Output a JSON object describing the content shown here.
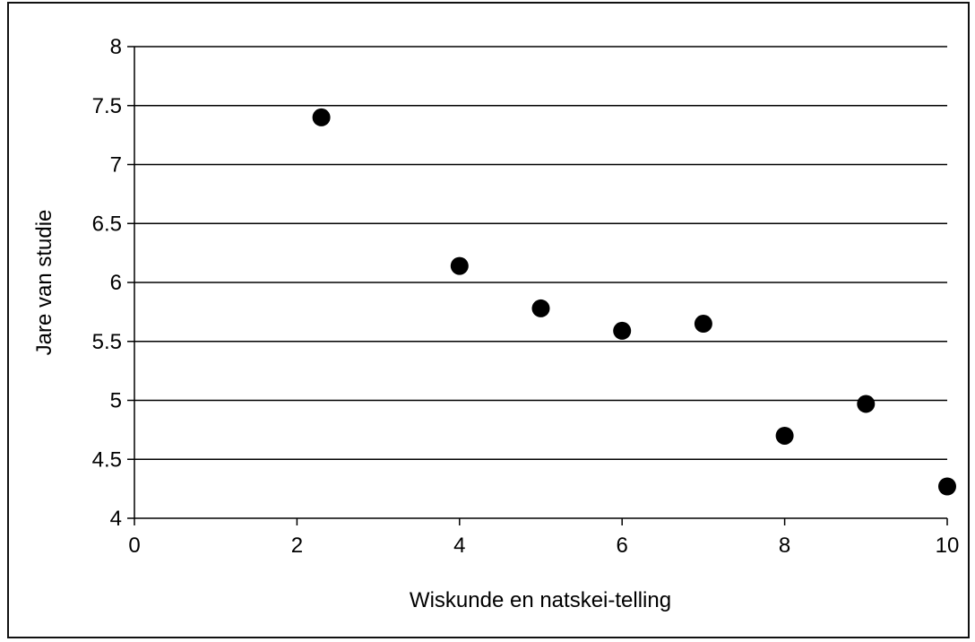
{
  "chart_data": {
    "type": "scatter",
    "title": "",
    "xlabel": "Wiskunde en natskei-telling",
    "ylabel": "Jare van studie",
    "xlim": [
      0,
      10
    ],
    "ylim": [
      4,
      8
    ],
    "xticks": [
      0,
      2,
      4,
      6,
      8,
      10
    ],
    "yticks": [
      4,
      4.5,
      5,
      5.5,
      6,
      6.5,
      7,
      7.5,
      8
    ],
    "xtick_labels": [
      "0",
      "2",
      "4",
      "6",
      "8",
      "10"
    ],
    "ytick_labels": [
      "4",
      "4.5",
      "5",
      "5.5",
      "6",
      "6.5",
      "7",
      "7.5",
      "8"
    ],
    "grid": "horizontal",
    "legend": "none",
    "marker_color": "#000000",
    "points": [
      {
        "x": 2.3,
        "y": 7.4
      },
      {
        "x": 4.0,
        "y": 6.14
      },
      {
        "x": 5.0,
        "y": 5.78
      },
      {
        "x": 6.0,
        "y": 5.59
      },
      {
        "x": 7.0,
        "y": 5.65
      },
      {
        "x": 8.0,
        "y": 4.7
      },
      {
        "x": 9.0,
        "y": 4.97
      },
      {
        "x": 10.0,
        "y": 4.27
      }
    ]
  }
}
